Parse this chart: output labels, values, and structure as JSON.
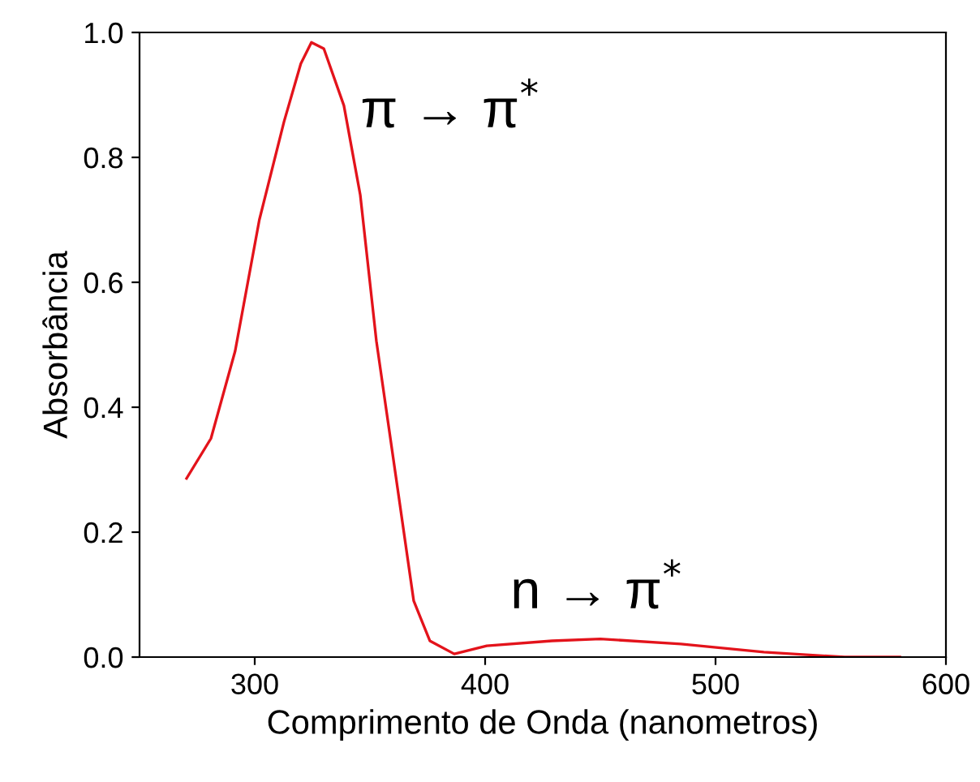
{
  "chart_data": {
    "type": "line",
    "xlabel": "Comprimento de Onda (nanometros)",
    "ylabel": "Absorbância",
    "series": [
      {
        "color": "#e3131b",
        "x": [
          270.4,
          281,
          291.5,
          302,
          312.7,
          320,
          324.6,
          330,
          338.7,
          345.8,
          352.8,
          362,
          369,
          376,
          386.6,
          400.7,
          429,
          450,
          485,
          521,
          556,
          580
        ],
        "values": [
          0.286,
          0.35,
          0.49,
          0.7,
          0.857,
          0.95,
          0.984,
          0.974,
          0.883,
          0.74,
          0.506,
          0.27,
          0.09,
          0.026,
          0.005,
          0.018,
          0.026,
          0.029,
          0.021,
          0.008,
          0.0,
          0.0
        ]
      }
    ],
    "xlim": [
      250,
      600
    ],
    "xticks": [
      300,
      400,
      500,
      600
    ],
    "ylim": [
      0,
      1
    ],
    "yticks": [
      {
        "value": 0,
        "label": "0.0"
      },
      {
        "value": 0.2,
        "label": "0.2"
      },
      {
        "value": 0.4,
        "label": "0.4"
      },
      {
        "value": 0.6,
        "label": "0.6"
      },
      {
        "value": 0.8,
        "label": "0.8"
      },
      {
        "value": 1,
        "label": "1.0"
      }
    ],
    "annotations": [
      "π → π$^{*}$",
      "n → π$^{*}$"
    ],
    "grid": false,
    "legend": false,
    "marker": "none",
    "line_style": "solid"
  }
}
